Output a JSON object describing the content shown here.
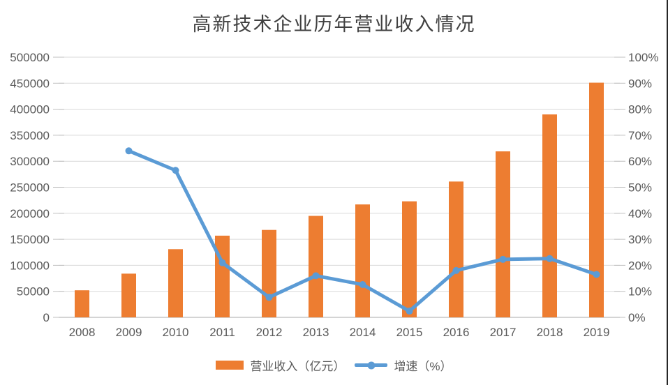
{
  "chart_data": {
    "type": "combo-bar-line",
    "title": "高新技术企业历年营业收入情况",
    "categories": [
      "2008",
      "2009",
      "2010",
      "2011",
      "2012",
      "2013",
      "2014",
      "2015",
      "2016",
      "2017",
      "2018",
      "2019"
    ],
    "series": [
      {
        "name": "营业收入（亿元）",
        "type": "bar",
        "axis": "left",
        "color": "#ED7D31",
        "values": [
          52000,
          84000,
          131000,
          157000,
          168000,
          195000,
          217000,
          223000,
          261000,
          319000,
          390000,
          451000
        ]
      },
      {
        "name": "增速（%）",
        "type": "line",
        "axis": "right",
        "color": "#5B9BD5",
        "values": [
          null,
          64,
          56.5,
          21,
          7.7,
          16,
          12.6,
          2.4,
          18,
          22.3,
          22.6,
          16.5
        ]
      }
    ],
    "left_axis": {
      "min": 0,
      "max": 500000,
      "step": 50000,
      "tick_labels": [
        "0",
        "50000",
        "100000",
        "150000",
        "200000",
        "250000",
        "300000",
        "350000",
        "400000",
        "450000",
        "500000"
      ]
    },
    "right_axis": {
      "min": 0,
      "max": 100,
      "step": 10,
      "tick_labels": [
        "0%",
        "10%",
        "20%",
        "30%",
        "40%",
        "50%",
        "60%",
        "70%",
        "80%",
        "90%",
        "100%"
      ]
    },
    "grid": true,
    "legend_position": "bottom",
    "colors": {
      "gridline": "#D9D9D9",
      "axis_line": "#C6C6C6",
      "tick": "#BFBFBF",
      "text": "#595959",
      "title_text": "#404040",
      "border": "#262626"
    }
  }
}
